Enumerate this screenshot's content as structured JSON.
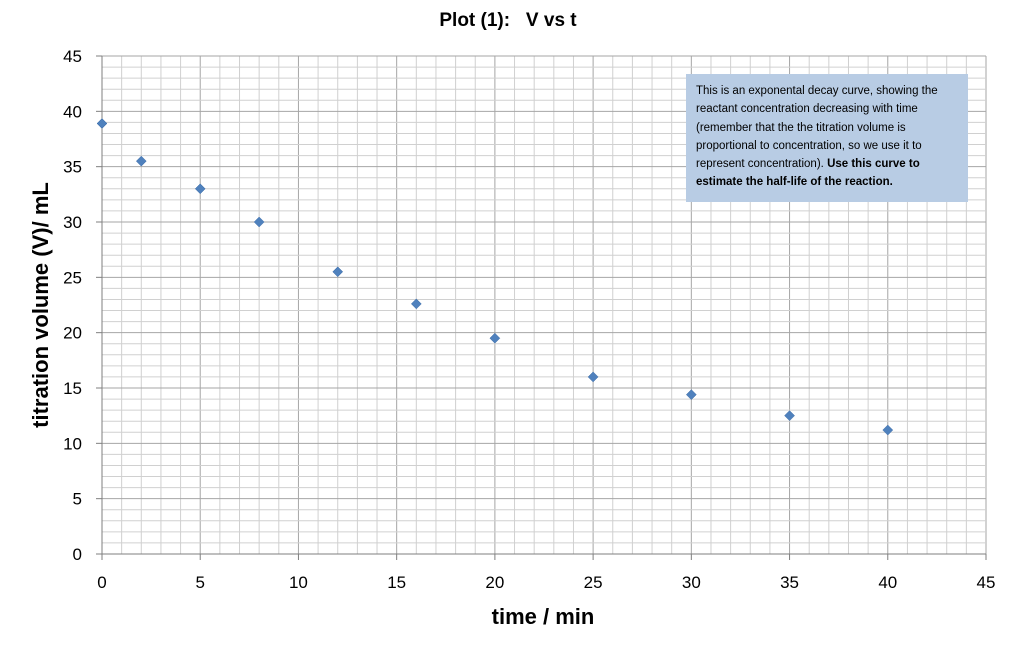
{
  "chart_data": {
    "type": "scatter",
    "title": "Plot (1):   V vs t",
    "xlabel": "time / min",
    "ylabel": "titration volume (V)/ mL",
    "xlim": [
      0,
      45
    ],
    "ylim": [
      0,
      45
    ],
    "x_ticks": [
      0,
      5,
      10,
      15,
      20,
      25,
      30,
      35,
      40,
      45
    ],
    "y_ticks": [
      0,
      5,
      10,
      15,
      20,
      25,
      30,
      35,
      40,
      45
    ],
    "grid": true,
    "marker_color": "#4f81bd",
    "series": [
      {
        "x": [
          0,
          2,
          5,
          8,
          12,
          16,
          20,
          25,
          30,
          35,
          40
        ],
        "y": [
          38.9,
          35.5,
          33.0,
          30.0,
          25.5,
          22.6,
          19.5,
          16.0,
          14.4,
          12.5,
          11.2
        ]
      }
    ],
    "annotation": {
      "text": "This is an exponental decay curve, showing the reactant concentration decreasing with time (remember that the the titration volume is proportional to concentration, so we use it to represent concentration).",
      "bold_text": "Use this curve to estimate the half-life of the reaction.",
      "background": "#b8cce4"
    }
  }
}
